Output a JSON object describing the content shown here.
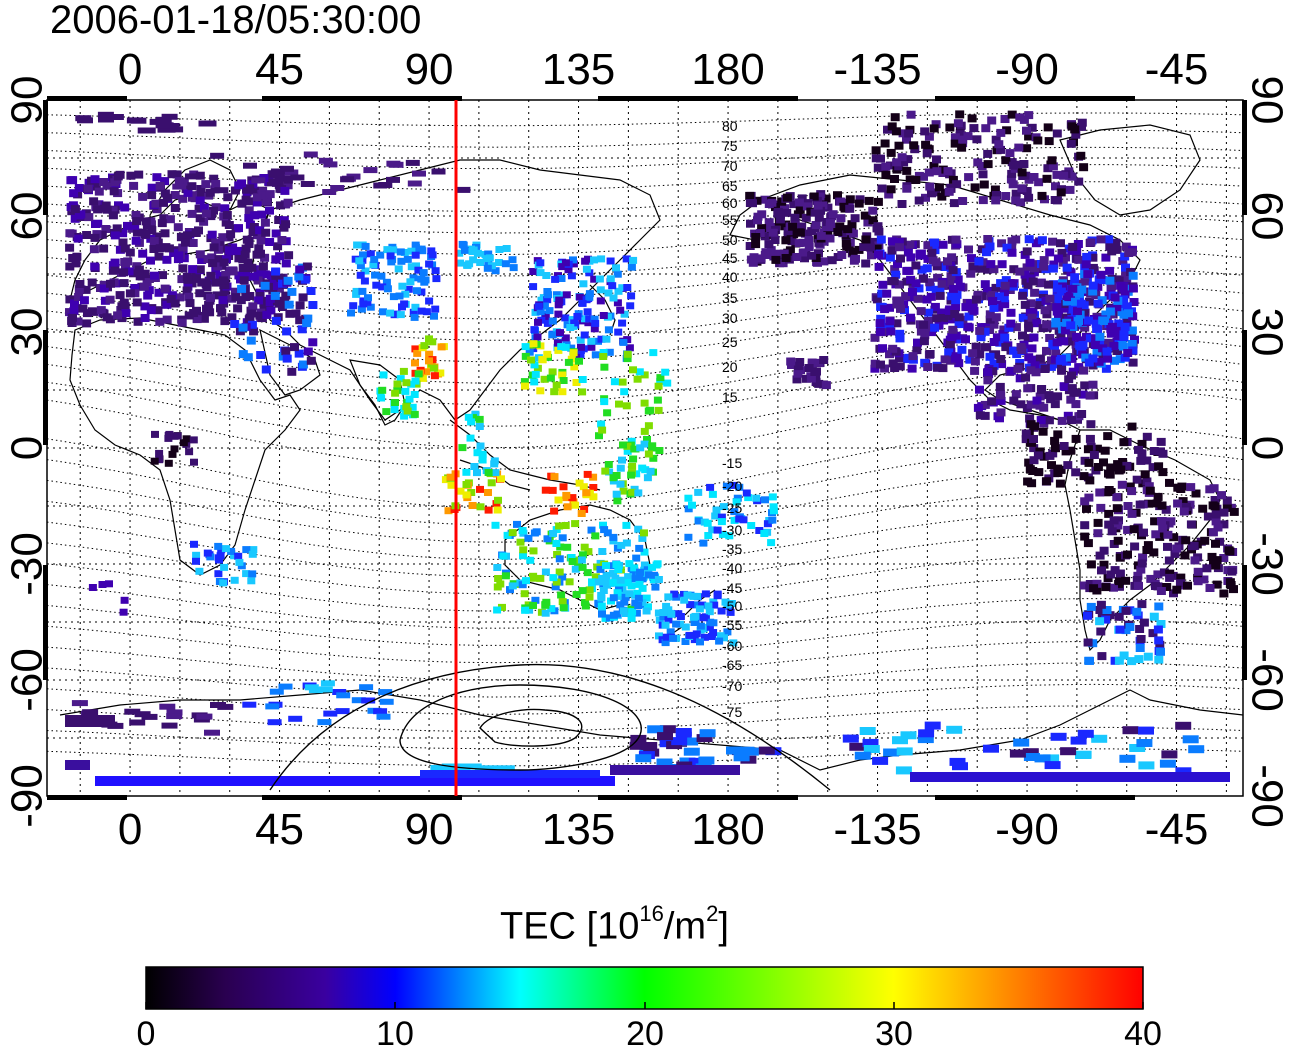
{
  "title": "2006-01-18/05:30:00",
  "map": {
    "projection": "equirectangular",
    "lon_range": [
      -25,
      335
    ],
    "lat_range": [
      -90,
      90
    ],
    "top_lon_labels": [
      "0",
      "45",
      "90",
      "135",
      "180",
      "-135",
      "-90",
      "-45"
    ],
    "bottom_lon_labels": [
      "0",
      "45",
      "90",
      "135",
      "180",
      "-135",
      "-90",
      "-45"
    ],
    "left_lat_labels": [
      "90",
      "60",
      "30",
      "0",
      "-30",
      "-60",
      "-90"
    ],
    "right_lat_labels": [
      "90",
      "60",
      "30",
      "0",
      "-30",
      "-60",
      "-90"
    ],
    "meridian_line_lon": 97,
    "meridian_line_color": "#ff0000",
    "grid": "dotted",
    "contour_labels": {
      "north": [
        "80",
        "75",
        "70",
        "65",
        "60",
        "55",
        "50",
        "45",
        "40",
        "35",
        "30",
        "25",
        "20",
        "15"
      ],
      "south": [
        "-15",
        "-20",
        "-25",
        "-30",
        "-35",
        "-40",
        "-45",
        "-50",
        "-55",
        "-60",
        "-65",
        "-70",
        "-75"
      ]
    }
  },
  "colorbar": {
    "title_prefix": "TEC  [10",
    "title_sup1": "16",
    "title_mid": "/m",
    "title_sup2": "2",
    "title_suffix": "]",
    "min": 0,
    "max": 40,
    "ticks": [
      "0",
      "10",
      "20",
      "30",
      "40"
    ],
    "colors": [
      "#000000",
      "#3b0070",
      "#0000ff",
      "#00ffff",
      "#00ff00",
      "#ffff00",
      "#ff7f00",
      "#ff0000"
    ]
  }
}
